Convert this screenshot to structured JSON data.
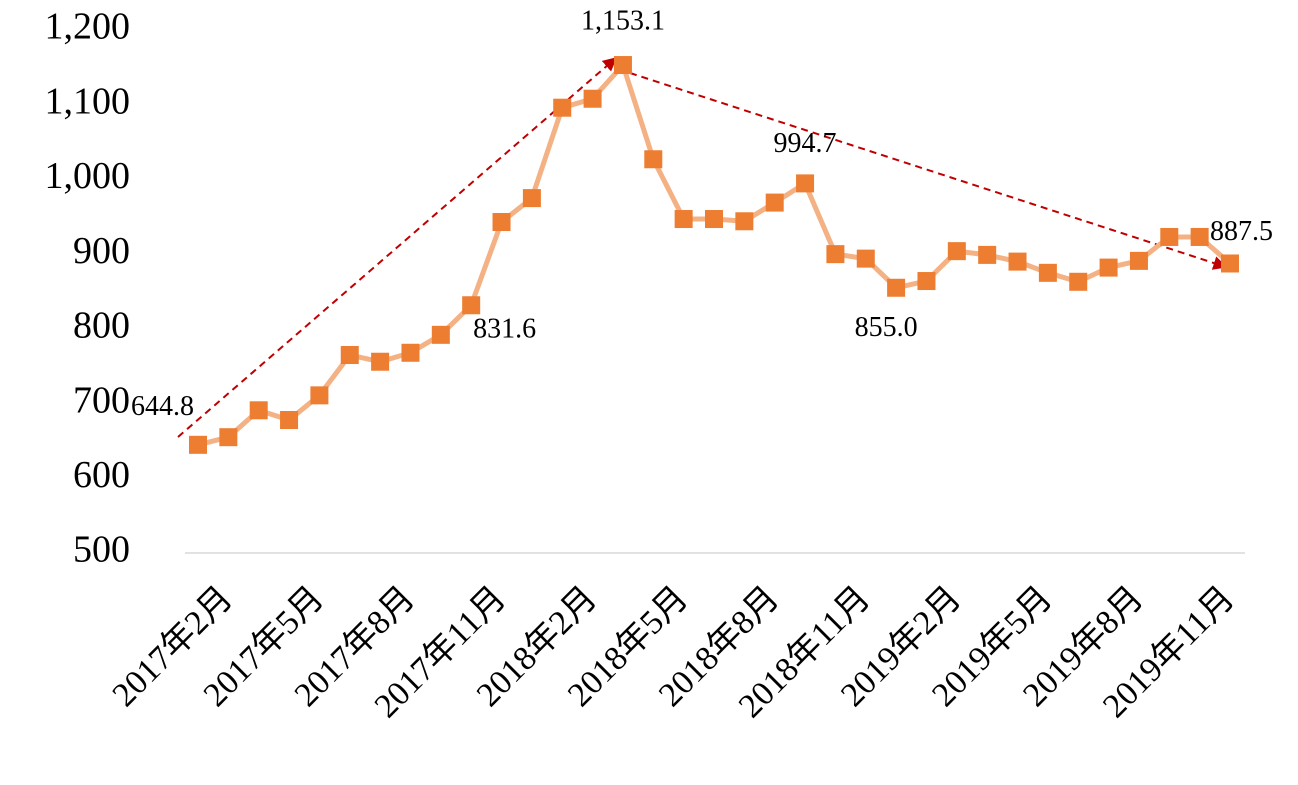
{
  "chart_data": {
    "type": "line",
    "categories": [
      null,
      "2017年2月",
      null,
      null,
      "2017年5月",
      null,
      null,
      "2017年8月",
      null,
      null,
      "2017年11月",
      null,
      null,
      "2018年2月",
      null,
      null,
      "2018年5月",
      null,
      null,
      "2018年8月",
      null,
      null,
      "2018年11月",
      null,
      null,
      "2019年2月",
      null,
      null,
      "2019年5月",
      null,
      null,
      "2019年8月",
      null,
      null,
      "2019年11月"
    ],
    "series": [
      {
        "name": null,
        "color": "#ed7d31",
        "line_color": "#f4b183",
        "values": [
          644.8,
          655,
          691,
          678,
          711,
          765,
          756,
          768,
          792,
          831.6,
          943,
          975,
          1096,
          1108,
          1153.1,
          1027,
          947,
          947,
          944,
          969,
          994.7,
          900,
          894,
          855.0,
          864,
          904,
          899,
          890,
          875,
          863,
          882,
          891,
          923,
          923,
          887.5
        ],
        "value_labels": [
          "644.8",
          null,
          null,
          null,
          null,
          null,
          null,
          null,
          null,
          "831.6",
          null,
          null,
          null,
          null,
          "1,153.1",
          null,
          null,
          null,
          null,
          null,
          "994.7",
          null,
          null,
          "855.0",
          null,
          null,
          null,
          null,
          null,
          null,
          null,
          null,
          null,
          null,
          "887.5"
        ]
      }
    ],
    "ylim": [
      500,
      1200
    ],
    "yticks": [
      500,
      600,
      700,
      800,
      900,
      {
        "value": 1000,
        "label": "1,000"
      },
      {
        "value": 1100,
        "label": "1,100"
      },
      {
        "value": 1200,
        "label": "1,200"
      }
    ],
    "grid": false
  }
}
